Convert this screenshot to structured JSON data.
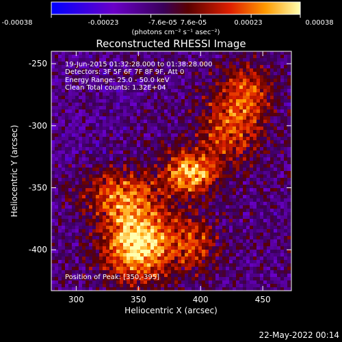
{
  "colorbar": {
    "tick_labels": [
      "-0.00038",
      "-0.00023",
      "-7.6e-05",
      "7.6e-05",
      "0.00023",
      "0.00038"
    ],
    "units_label": "(photons cm⁻² s⁻¹ asec⁻²)",
    "range": [
      -0.00038,
      0.00038
    ]
  },
  "chart_data": {
    "type": "heatmap",
    "title": "Reconstructed RHESSI Image",
    "xlabel": "Heliocentric X (arcsec)",
    "ylabel": "Heliocentric Y (arcsec)",
    "xlim": [
      280,
      473
    ],
    "ylim": [
      -433,
      -240
    ],
    "x_ticks": [
      300,
      350,
      400,
      450
    ],
    "y_ticks": [
      -250,
      -300,
      -350,
      -400
    ],
    "x_tick_labels": [
      "300",
      "350",
      "400",
      "450"
    ],
    "y_tick_labels": [
      "-250",
      "-300",
      "-350",
      "-400"
    ],
    "annotations": [
      "19-Jun-2015 01:32:28.000 to 01:38:28.000",
      "Detectors: 3F 5F 6F 7F 8F 9F, Att 0",
      "Energy Range: 25.0 - 50.0 keV",
      "Clean     Total counts: 1.32E+04"
    ],
    "peak_label": "Position of Peak: [350,-395]",
    "peak": [
      350,
      -395
    ],
    "emission_regions": [
      {
        "x": 350,
        "y": -395,
        "rx": 28,
        "ry": 30,
        "amp": 1.0
      },
      {
        "x": 392,
        "y": -338,
        "rx": 22,
        "ry": 18,
        "amp": 0.8
      },
      {
        "x": 335,
        "y": -355,
        "rx": 30,
        "ry": 20,
        "amp": 0.55
      },
      {
        "x": 425,
        "y": -300,
        "rx": 25,
        "ry": 30,
        "amp": 0.55
      },
      {
        "x": 440,
        "y": -270,
        "rx": 18,
        "ry": 22,
        "amp": 0.45
      },
      {
        "x": 395,
        "y": -395,
        "rx": 20,
        "ry": 22,
        "amp": 0.45
      }
    ]
  },
  "timestamp": "22-May-2022 00:14"
}
